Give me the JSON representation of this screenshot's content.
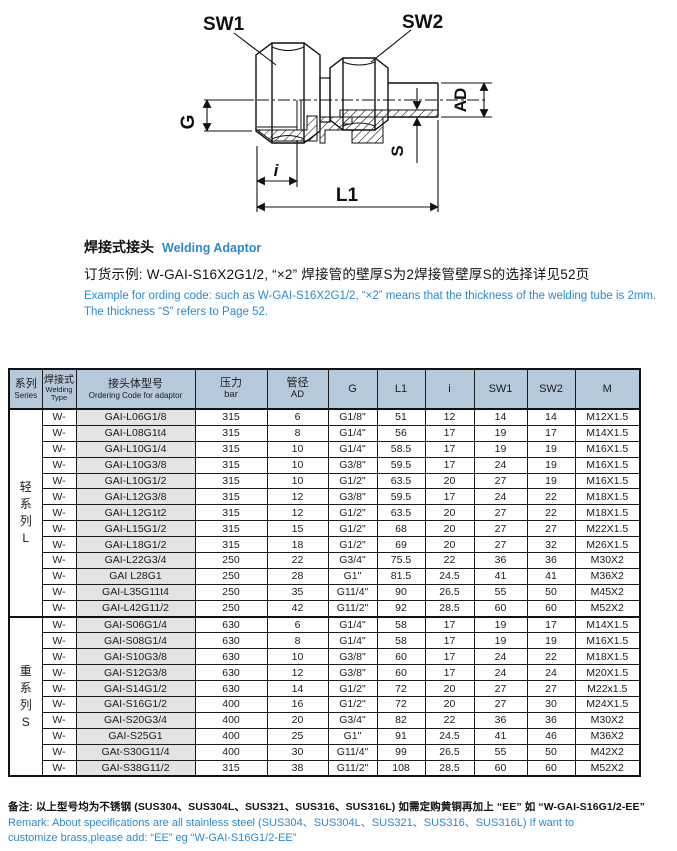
{
  "colors": {
    "accent_blue": "#2b8acc",
    "table_header_bg": "#b6c9db",
    "code_column_bg": "#e3e3e3",
    "line_color": "#111111"
  },
  "drawing": {
    "labels": {
      "sw1": "SW1",
      "sw2": "SW2",
      "g": "G",
      "ad": "AD",
      "s": "S",
      "i": "i",
      "l1": "L1"
    }
  },
  "title": {
    "zh": "焊接式接头",
    "en": "Welding Adaptor"
  },
  "order": {
    "zh": "订货示例: W-GAI-S16X2G1/2, “×2” 焊接管的壁厚S为2焊接管壁厚S的选择详见52页",
    "en1": "Example for ording code: such as W-GAI-S16X2G1/2,  “×2”  means that the thickness of the welding tube is 2mm.",
    "en2": "The thickness  “S”  refers to Page 52."
  },
  "table": {
    "headers": {
      "series_zh": "系列",
      "series_en": "Series",
      "welding_zh": "焊接式",
      "welding_en1": "Welding",
      "welding_en2": "Type",
      "code_zh": "接头体型号",
      "code_en": "Ordering Code for adaptor",
      "pressure_zh": "压力",
      "pressure_en": "bar",
      "diameter_zh": "管径",
      "diameter_en": "AD",
      "g": "G",
      "l1": "L1",
      "i": "i",
      "sw1": "SW1",
      "sw2": "SW2",
      "m": "M"
    },
    "sections": [
      {
        "series_chars": [
          "轻",
          "系",
          "列",
          "L"
        ],
        "rows": [
          [
            "W-",
            "GAI-L06G1/8",
            "315",
            "6",
            "G1/8\"",
            "51",
            "12",
            "14",
            "14",
            "M12X1.5"
          ],
          [
            "W-",
            "GAI-L08G1t4",
            "315",
            "8",
            "G1/4\"",
            "56",
            "17",
            "19",
            "17",
            "M14X1.5"
          ],
          [
            "W-",
            "GAI-L10G1/4",
            "315",
            "10",
            "G1/4\"",
            "58.5",
            "17",
            "19",
            "19",
            "M16X1.5"
          ],
          [
            "W-",
            "GAI-L10G3/8",
            "315",
            "10",
            "G3/8\"",
            "59.5",
            "17",
            "24",
            "19",
            "M16X1.5"
          ],
          [
            "W-",
            "GAI-L10G1/2",
            "315",
            "10",
            "G1/2\"",
            "63.5",
            "20",
            "27",
            "19",
            "M16X1.5"
          ],
          [
            "W-",
            "GAI-L12G3/8",
            "315",
            "12",
            "G3/8\"",
            "59.5",
            "17",
            "24",
            "22",
            "M18X1.5"
          ],
          [
            "W-",
            "GAI-L12G1t2",
            "315",
            "12",
            "G1/2\"",
            "63.5",
            "20",
            "27",
            "22",
            "M18X1.5"
          ],
          [
            "W-",
            "GAI-L15G1/2",
            "315",
            "15",
            "G1/2\"",
            "68",
            "20",
            "27",
            "27",
            "M22X1.5"
          ],
          [
            "W-",
            "GAI-L18G1/2",
            "315",
            "18",
            "G1/2\"",
            "69",
            "20",
            "27",
            "32",
            "M26X1.5"
          ],
          [
            "W-",
            "GAI-L22G3/4",
            "250",
            "22",
            "G3/4\"",
            "75.5",
            "22",
            "36",
            "36",
            "M30X2"
          ],
          [
            "W-",
            "GAI L28G1",
            "250",
            "28",
            "G1\"",
            "81.5",
            "24.5",
            "41",
            "41",
            "M36X2"
          ],
          [
            "W-",
            "GAI-L35G11t4",
            "250",
            "35",
            "G11/4\"",
            "90",
            "26.5",
            "55",
            "50",
            "M45X2"
          ],
          [
            "W-",
            "GAI-L42G11/2",
            "250",
            "42",
            "G11/2\"",
            "92",
            "28.5",
            "60",
            "60",
            "M52X2"
          ]
        ]
      },
      {
        "series_chars": [
          "重",
          "系",
          "列",
          "S"
        ],
        "rows": [
          [
            "W-",
            "GAI-S06G1/4",
            "630",
            "6",
            "G1/4\"",
            "58",
            "17",
            "19",
            "17",
            "M14X1.5"
          ],
          [
            "W-",
            "GAI-S08G1/4",
            "630",
            "8",
            "G1/4\"",
            "58",
            "17",
            "19",
            "19",
            "M16X1.5"
          ],
          [
            "W-",
            "GAI-S10G3/8",
            "630",
            "10",
            "G3/8\"",
            "60",
            "17",
            "24",
            "22",
            "M18X1.5"
          ],
          [
            "W-",
            "GAI-S12G3/8",
            "630",
            "12",
            "G3/8\"",
            "60",
            "17",
            "24",
            "24",
            "M20X1.5"
          ],
          [
            "W-",
            "GAI-S14G1/2",
            "630",
            "14",
            "G1/2\"",
            "72",
            "20",
            "27",
            "27",
            "M22x1.5"
          ],
          [
            "W-",
            "GAI-S16G1/2",
            "400",
            "16",
            "G1/2\"",
            "72",
            "20",
            "27",
            "30",
            "M24X1.5"
          ],
          [
            "W-",
            "GAI-S20G3/4",
            "400",
            "20",
            "G3/4\"",
            "82",
            "22",
            "36",
            "36",
            "M30X2"
          ],
          [
            "W-",
            "GAI-S25G1",
            "400",
            "25",
            "G1\"",
            "91",
            "24.5",
            "41",
            "46",
            "M36X2"
          ],
          [
            "W-",
            "GAt-S30G11/4",
            "400",
            "30",
            "G11/4\"",
            "99",
            "26.5",
            "55",
            "50",
            "M42X2"
          ],
          [
            "W-",
            "GAI-S38G11/2",
            "315",
            "38",
            "G11/2\"",
            "108",
            "28.5",
            "60",
            "60",
            "M52X2"
          ]
        ]
      }
    ]
  },
  "remark": {
    "zh": "备注: 以上型号均为不锈钢 (SUS304、SUS304L、SUS321、SUS316、SUS316L) 如需定购黄铜再加上 “EE” 如 “W-GAI-S16G1/2-EE”",
    "en1": "Remark:  About specifications are all stainless steel  (SUS304、SUS304L、SUS321、SUS316、SUS316L)  If want to",
    "en2": "customize brass,please add:  “EE”  eg  “W-GAI-S16G1/2-EE”"
  }
}
